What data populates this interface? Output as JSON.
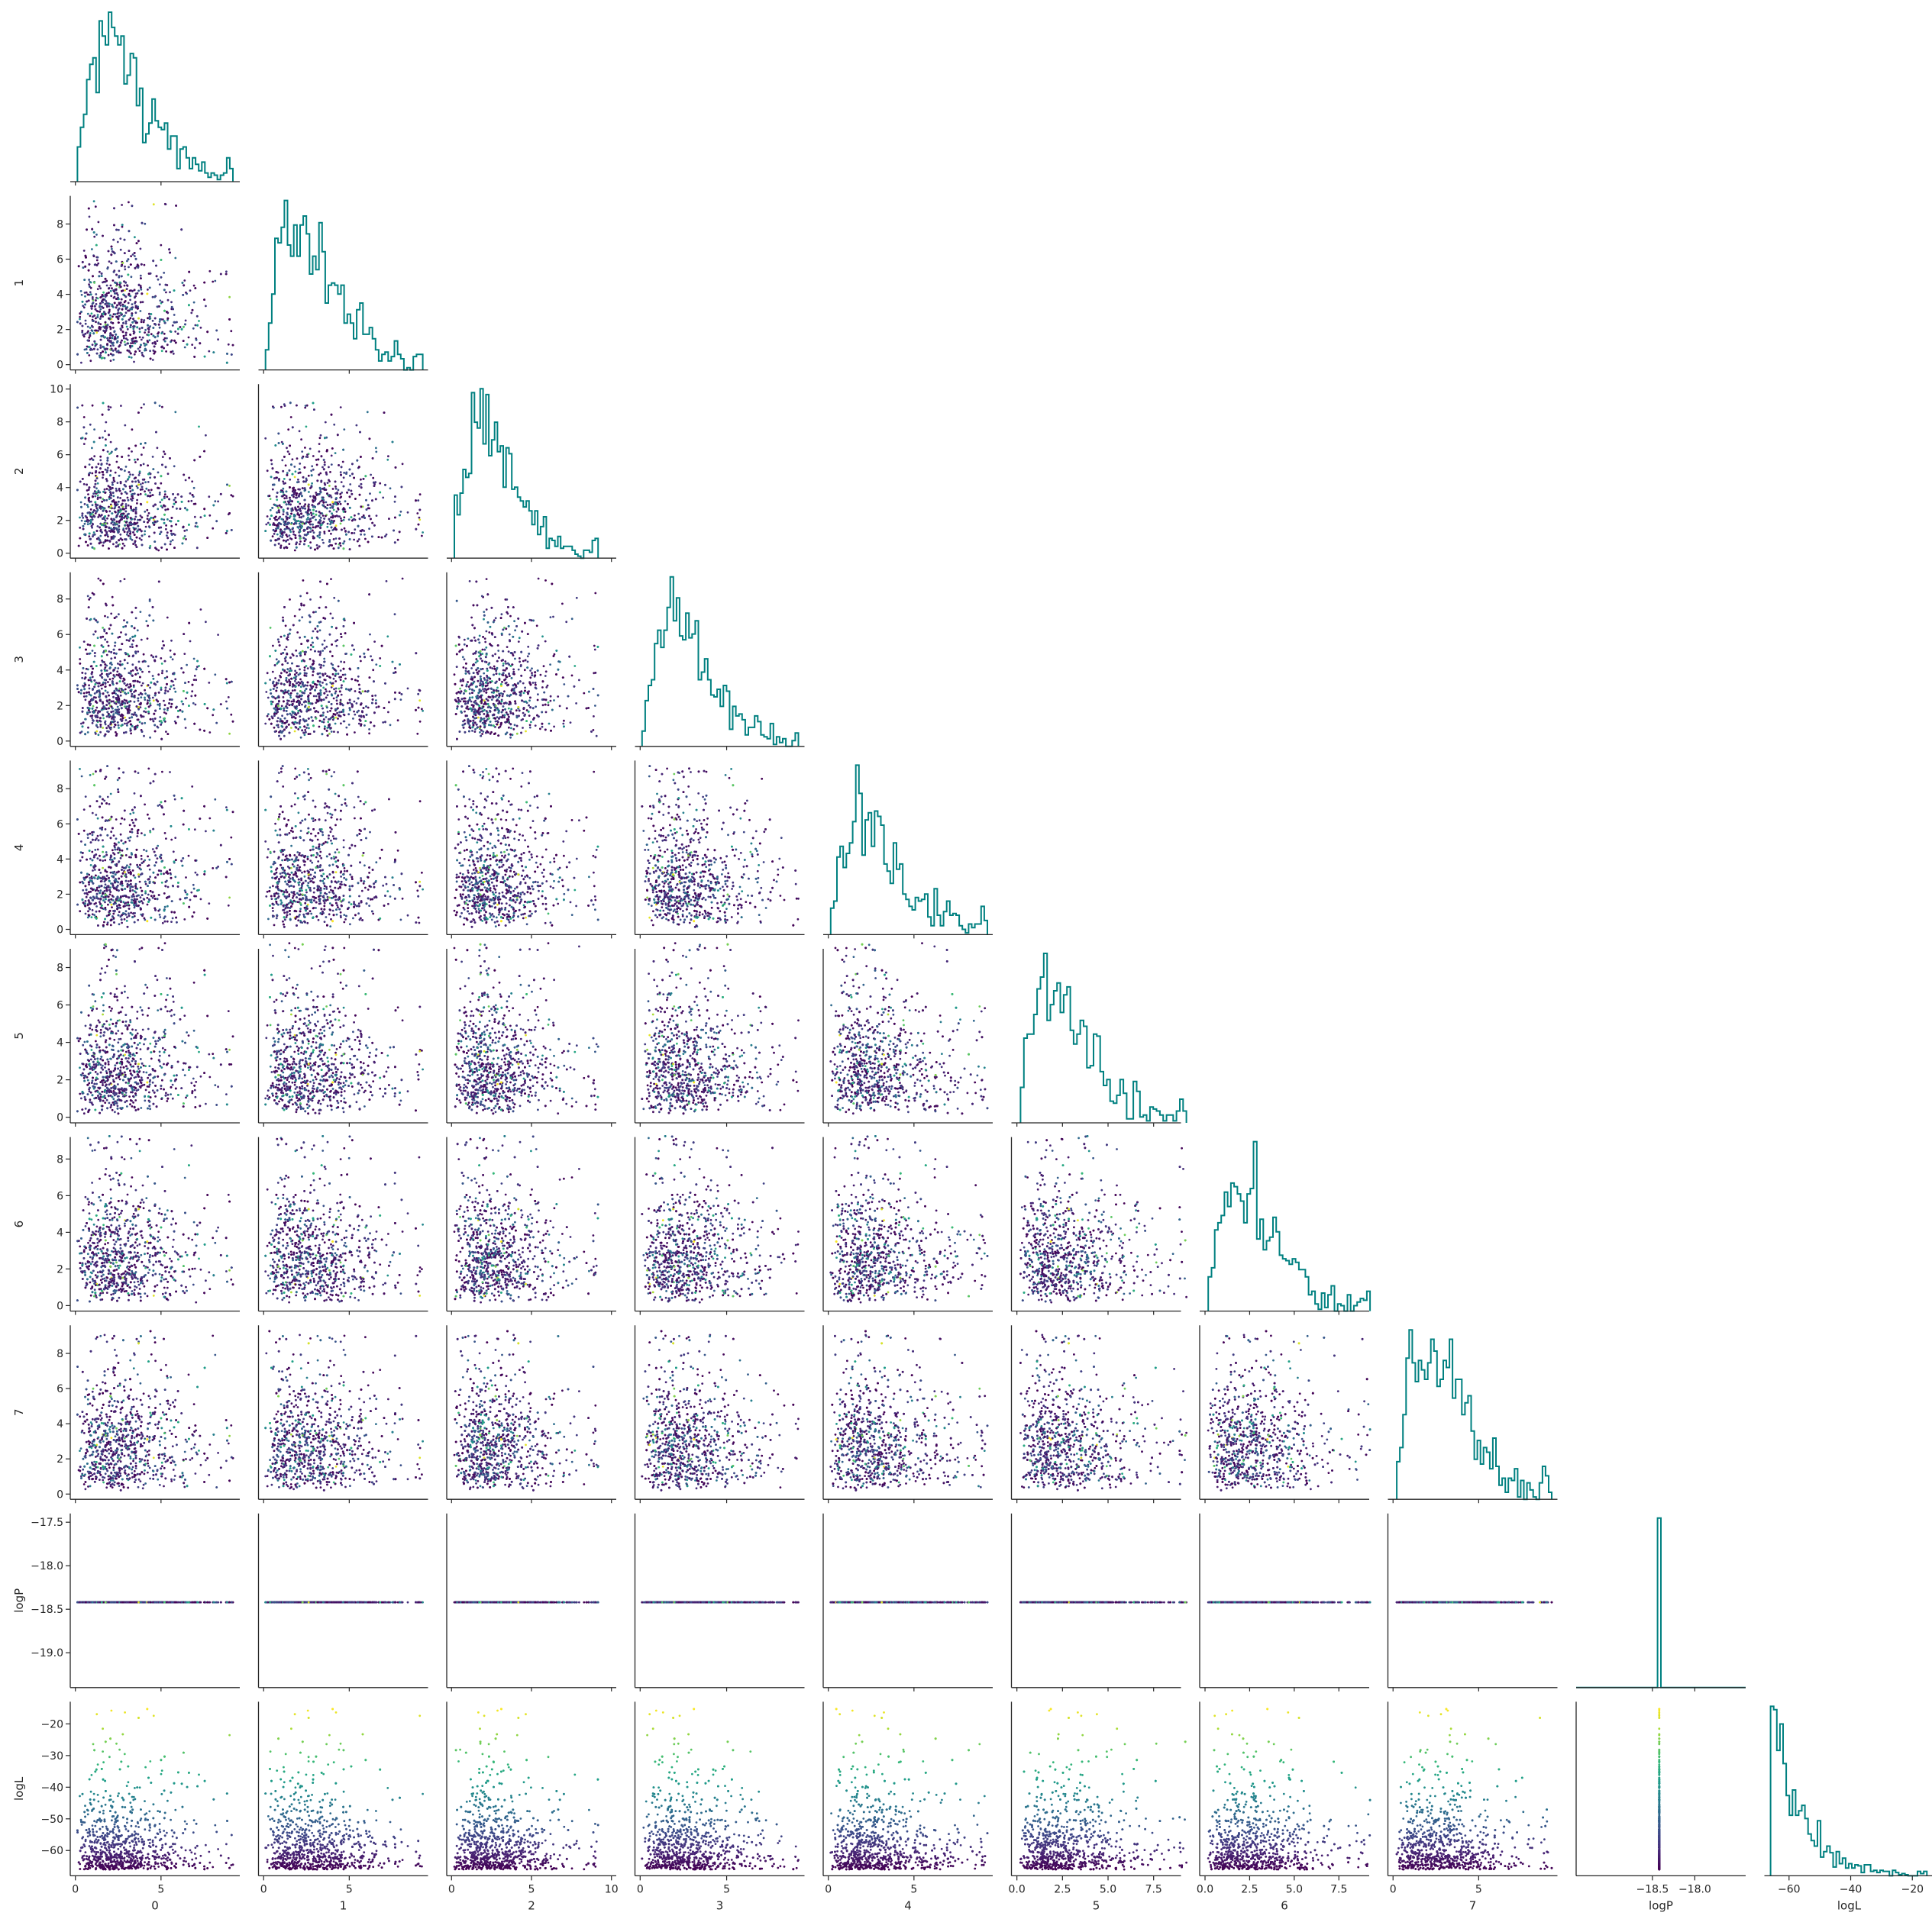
{
  "chart_data": {
    "type": "scatter",
    "layout": "corner pair plot (lower triangle scatter, diagonal step histograms)",
    "variables": [
      "0",
      "1",
      "2",
      "3",
      "4",
      "5",
      "6",
      "7",
      "logP",
      "logL"
    ],
    "point_count": 1500,
    "point_colormap": "viridis, colored by logL",
    "histogram_color": "#008080",
    "grid": false,
    "legend": "none",
    "axes": {
      "0": {
        "range": [
          -0.3,
          9.6
        ],
        "ticks": [
          "0",
          "5"
        ]
      },
      "1": {
        "range": [
          -0.3,
          9.6
        ],
        "ticks": [
          "0",
          "5"
        ]
      },
      "2": {
        "range": [
          -0.3,
          10.3
        ],
        "ticks": [
          "0",
          "5",
          "10"
        ]
      },
      "3": {
        "range": [
          -0.3,
          9.5
        ],
        "ticks": [
          "0",
          "5"
        ]
      },
      "4": {
        "range": [
          -0.3,
          9.6
        ],
        "ticks": [
          "0",
          "5"
        ]
      },
      "5": {
        "range": [
          -0.3,
          9.0
        ],
        "ticks": [
          "0.0",
          "2.5",
          "5.0",
          "7.5"
        ]
      },
      "6": {
        "range": [
          -0.3,
          9.2
        ],
        "ticks": [
          "0.0",
          "2.5",
          "5.0",
          "7.5"
        ]
      },
      "7": {
        "range": [
          -0.3,
          9.6
        ],
        "ticks": [
          "0",
          "5"
        ]
      },
      "logP": {
        "range": [
          -19.4,
          -17.4
        ],
        "ticks": [
          "−18.5",
          "−18.0"
        ]
      },
      "logL": {
        "range": [
          -68,
          -13
        ],
        "ticks": [
          "−60",
          "−40",
          "−20"
        ]
      }
    },
    "row_ticks": {
      "1": [
        "0",
        "2",
        "4",
        "6",
        "8"
      ],
      "2": [
        "0",
        "2",
        "4",
        "6",
        "8",
        "10"
      ],
      "3": [
        "0",
        "2",
        "4",
        "6",
        "8"
      ],
      "4": [
        "0",
        "2",
        "4",
        "6",
        "8"
      ],
      "5": [
        "0",
        "2",
        "4",
        "6",
        "8"
      ],
      "6": [
        "0",
        "2",
        "4",
        "6",
        "8"
      ],
      "7": [
        "0",
        "2",
        "4",
        "6",
        "8"
      ],
      "logP": [
        "−17.5",
        "−18.0",
        "−18.5",
        "−19.0"
      ],
      "logL": [
        "−20",
        "−30",
        "−40",
        "−50",
        "−60"
      ]
    },
    "logP_value": -18.42,
    "distributions": {
      "params": "right-skewed, mode ≈ 2–3, range 0–9.5",
      "logL": "right-skewed, peak at −65, range −66 to −15"
    }
  }
}
